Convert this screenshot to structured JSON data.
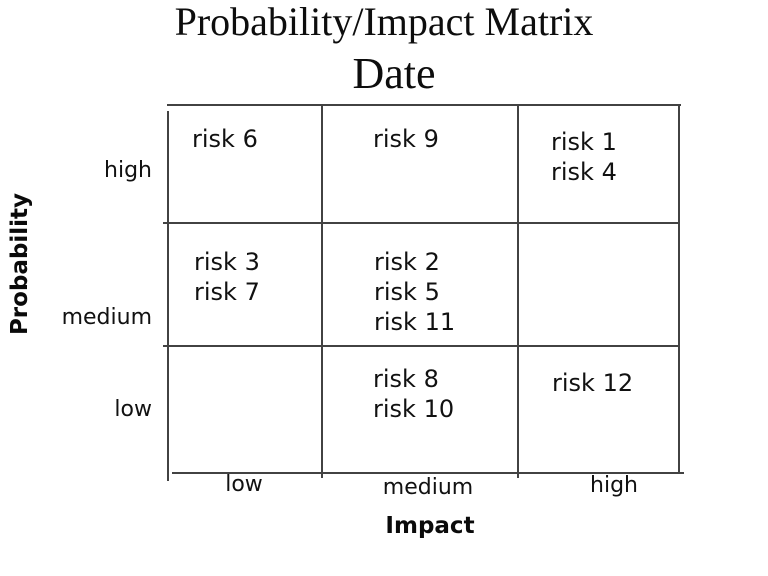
{
  "title": "Probability/Impact Matrix",
  "subtitle": "Date",
  "y_axis": {
    "label": "Probability",
    "categories": [
      "high",
      "medium",
      "low"
    ]
  },
  "x_axis": {
    "label": "Impact",
    "categories": [
      "low",
      "medium",
      "high"
    ]
  },
  "grid": {
    "rows": [
      {
        "label": "high",
        "cells": [
          {
            "impact": "low",
            "items": [
              "risk 6"
            ]
          },
          {
            "impact": "medium",
            "items": [
              "risk 9"
            ]
          },
          {
            "impact": "high",
            "items": [
              "risk 1",
              "risk 4"
            ]
          }
        ]
      },
      {
        "label": "medium",
        "cells": [
          {
            "impact": "low",
            "items": [
              "risk 3",
              "risk 7"
            ]
          },
          {
            "impact": "medium",
            "items": [
              "risk 2",
              "risk 5",
              "risk 11"
            ]
          },
          {
            "impact": "high",
            "items": []
          }
        ]
      },
      {
        "label": "low",
        "cells": [
          {
            "impact": "low",
            "items": []
          },
          {
            "impact": "medium",
            "items": [
              "risk 8",
              "risk 10"
            ]
          },
          {
            "impact": "high",
            "items": [
              "risk 12"
            ]
          }
        ]
      }
    ]
  },
  "colors": {
    "line": "#424242",
    "text": "#111111",
    "background": "#ffffff"
  }
}
